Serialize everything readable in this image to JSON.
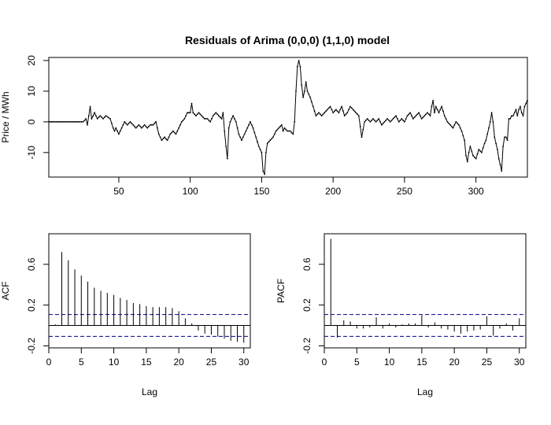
{
  "title": "Residuals of Arima (0,0,0) (1,1,0) model",
  "colors": {
    "line": "#000000",
    "ci": "#00008b",
    "background": "#ffffff"
  },
  "chart_data": [
    {
      "type": "line",
      "ylabel": "Price / MWh",
      "xlim": [
        1,
        336
      ],
      "ylim": [
        -18,
        21
      ],
      "xticks": [
        "50",
        "100",
        "150",
        "200",
        "250",
        "300"
      ],
      "yticks": [
        "-10",
        "0",
        "10",
        "20"
      ],
      "grid": false,
      "points": true,
      "anchors": [
        [
          1,
          0
        ],
        [
          25,
          0
        ],
        [
          27,
          1
        ],
        [
          28,
          -1
        ],
        [
          30,
          5
        ],
        [
          31,
          1
        ],
        [
          33,
          3
        ],
        [
          35,
          1
        ],
        [
          37,
          2
        ],
        [
          39,
          1
        ],
        [
          41,
          2
        ],
        [
          44,
          1
        ],
        [
          46,
          -2
        ],
        [
          47,
          -3
        ],
        [
          48,
          -2
        ],
        [
          50,
          -4
        ],
        [
          51,
          -3
        ],
        [
          52,
          -2
        ],
        [
          54,
          0
        ],
        [
          56,
          -1
        ],
        [
          58,
          0
        ],
        [
          60,
          -1
        ],
        [
          62,
          -2
        ],
        [
          64,
          -1
        ],
        [
          66,
          -2
        ],
        [
          68,
          -1
        ],
        [
          70,
          -2
        ],
        [
          72,
          -1
        ],
        [
          74,
          -1
        ],
        [
          76,
          0
        ],
        [
          78,
          -4
        ],
        [
          80,
          -6
        ],
        [
          82,
          -5
        ],
        [
          84,
          -6
        ],
        [
          86,
          -4
        ],
        [
          88,
          -3
        ],
        [
          90,
          -4
        ],
        [
          92,
          -2
        ],
        [
          94,
          0
        ],
        [
          96,
          1
        ],
        [
          98,
          3
        ],
        [
          100,
          3
        ],
        [
          101,
          6
        ],
        [
          102,
          3
        ],
        [
          104,
          2
        ],
        [
          106,
          3
        ],
        [
          108,
          2
        ],
        [
          110,
          1
        ],
        [
          112,
          1
        ],
        [
          114,
          0
        ],
        [
          116,
          2
        ],
        [
          118,
          3
        ],
        [
          120,
          2
        ],
        [
          122,
          1
        ],
        [
          123,
          3
        ],
        [
          124,
          -3
        ],
        [
          125,
          -8
        ],
        [
          126,
          -12
        ],
        [
          127,
          -2
        ],
        [
          128,
          0
        ],
        [
          130,
          2
        ],
        [
          132,
          0
        ],
        [
          134,
          -4
        ],
        [
          136,
          -6
        ],
        [
          138,
          -4
        ],
        [
          140,
          -2
        ],
        [
          142,
          0
        ],
        [
          144,
          -2
        ],
        [
          146,
          -5
        ],
        [
          148,
          -8
        ],
        [
          150,
          -10
        ],
        [
          151,
          -16
        ],
        [
          152,
          -17
        ],
        [
          153,
          -10
        ],
        [
          154,
          -7
        ],
        [
          156,
          -6
        ],
        [
          158,
          -5
        ],
        [
          160,
          -3
        ],
        [
          162,
          -2
        ],
        [
          164,
          -1
        ],
        [
          165,
          -3
        ],
        [
          166,
          -2
        ],
        [
          168,
          -3
        ],
        [
          170,
          -3
        ],
        [
          172,
          -4
        ],
        [
          173,
          0
        ],
        [
          174,
          10
        ],
        [
          175,
          18
        ],
        [
          176,
          20
        ],
        [
          177,
          18
        ],
        [
          178,
          12
        ],
        [
          179,
          8
        ],
        [
          180,
          10
        ],
        [
          181,
          13
        ],
        [
          182,
          10
        ],
        [
          184,
          8
        ],
        [
          186,
          5
        ],
        [
          188,
          2
        ],
        [
          190,
          3
        ],
        [
          192,
          2
        ],
        [
          194,
          3
        ],
        [
          196,
          4
        ],
        [
          198,
          5
        ],
        [
          200,
          3
        ],
        [
          202,
          4
        ],
        [
          204,
          3
        ],
        [
          206,
          5
        ],
        [
          208,
          2
        ],
        [
          210,
          3
        ],
        [
          212,
          5
        ],
        [
          214,
          4
        ],
        [
          216,
          3
        ],
        [
          218,
          2
        ],
        [
          220,
          -5
        ],
        [
          222,
          0
        ],
        [
          224,
          1
        ],
        [
          226,
          0
        ],
        [
          228,
          1
        ],
        [
          230,
          0
        ],
        [
          232,
          1
        ],
        [
          234,
          -1
        ],
        [
          236,
          0
        ],
        [
          238,
          1
        ],
        [
          240,
          0
        ],
        [
          242,
          1
        ],
        [
          244,
          2
        ],
        [
          246,
          0
        ],
        [
          248,
          1
        ],
        [
          250,
          0
        ],
        [
          252,
          2
        ],
        [
          254,
          3
        ],
        [
          256,
          1
        ],
        [
          258,
          2
        ],
        [
          260,
          3
        ],
        [
          262,
          1
        ],
        [
          264,
          2
        ],
        [
          266,
          3
        ],
        [
          268,
          2
        ],
        [
          269,
          5
        ],
        [
          270,
          7
        ],
        [
          271,
          3
        ],
        [
          272,
          5
        ],
        [
          274,
          3
        ],
        [
          276,
          5
        ],
        [
          278,
          2
        ],
        [
          280,
          0
        ],
        [
          282,
          -1
        ],
        [
          284,
          -2
        ],
        [
          285,
          -1
        ],
        [
          286,
          0
        ],
        [
          288,
          -1
        ],
        [
          290,
          -3
        ],
        [
          292,
          -6
        ],
        [
          293,
          -11
        ],
        [
          294,
          -13
        ],
        [
          295,
          -10
        ],
        [
          296,
          -8
        ],
        [
          298,
          -11
        ],
        [
          300,
          -12
        ],
        [
          302,
          -9
        ],
        [
          304,
          -10
        ],
        [
          306,
          -7
        ],
        [
          307,
          -6
        ],
        [
          308,
          -4
        ],
        [
          309,
          -2
        ],
        [
          310,
          0
        ],
        [
          311,
          3
        ],
        [
          312,
          0
        ],
        [
          313,
          -5
        ],
        [
          314,
          -7
        ],
        [
          315,
          -9
        ],
        [
          316,
          -12
        ],
        [
          317,
          -14
        ],
        [
          318,
          -16
        ],
        [
          319,
          -8
        ],
        [
          320,
          -5
        ],
        [
          321,
          -5
        ],
        [
          322,
          -6
        ],
        [
          323,
          1
        ],
        [
          324,
          1
        ],
        [
          325,
          2
        ],
        [
          326,
          2
        ],
        [
          327,
          3
        ],
        [
          328,
          4
        ],
        [
          329,
          2
        ],
        [
          330,
          4
        ],
        [
          331,
          5
        ],
        [
          332,
          3
        ],
        [
          333,
          2
        ],
        [
          334,
          5
        ],
        [
          335,
          6
        ],
        [
          336,
          7
        ]
      ]
    },
    {
      "type": "bar",
      "xlabel": "Lag",
      "ylabel": "ACF",
      "xlim": [
        0,
        31
      ],
      "ylim": [
        -0.22,
        0.9
      ],
      "xticks": [
        "0",
        "5",
        "10",
        "15",
        "20",
        "25",
        "30"
      ],
      "yticks": [
        "-0.2",
        "0.2",
        "0.6"
      ],
      "ci": 0.107,
      "lags": [
        1,
        2,
        3,
        4,
        5,
        6,
        7,
        8,
        9,
        10,
        11,
        12,
        13,
        14,
        15,
        16,
        17,
        18,
        19,
        20,
        21,
        22,
        23,
        24,
        25,
        26,
        27,
        28,
        29,
        30
      ],
      "values": [
        0.01,
        0.72,
        0.64,
        0.55,
        0.49,
        0.43,
        0.37,
        0.34,
        0.32,
        0.3,
        0.27,
        0.25,
        0.22,
        0.21,
        0.19,
        0.18,
        0.18,
        0.18,
        0.17,
        0.14,
        0.07,
        0.02,
        -0.05,
        -0.08,
        -0.09,
        -0.11,
        -0.13,
        -0.15,
        -0.16,
        -0.17
      ]
    },
    {
      "type": "bar",
      "xlabel": "Lag",
      "ylabel": "PACF",
      "xlim": [
        0,
        31
      ],
      "ylim": [
        -0.22,
        0.9
      ],
      "xticks": [
        "0",
        "5",
        "10",
        "15",
        "20",
        "25",
        "30"
      ],
      "yticks": [
        "-0.2",
        "0.2",
        "0.6"
      ],
      "ci": 0.107,
      "lags": [
        1,
        2,
        3,
        4,
        5,
        6,
        7,
        8,
        9,
        10,
        11,
        12,
        13,
        14,
        15,
        16,
        17,
        18,
        19,
        20,
        21,
        22,
        23,
        24,
        25,
        26,
        27,
        28,
        29,
        30
      ],
      "values": [
        0.85,
        -0.12,
        0.05,
        0.04,
        -0.03,
        -0.03,
        -0.02,
        0.08,
        -0.03,
        0.02,
        -0.02,
        0.01,
        0.02,
        0.02,
        0.1,
        -0.02,
        0.03,
        -0.03,
        -0.04,
        -0.06,
        -0.08,
        -0.06,
        -0.05,
        -0.04,
        0.09,
        -0.1,
        -0.03,
        0.02,
        -0.05,
        0.07
      ]
    }
  ]
}
